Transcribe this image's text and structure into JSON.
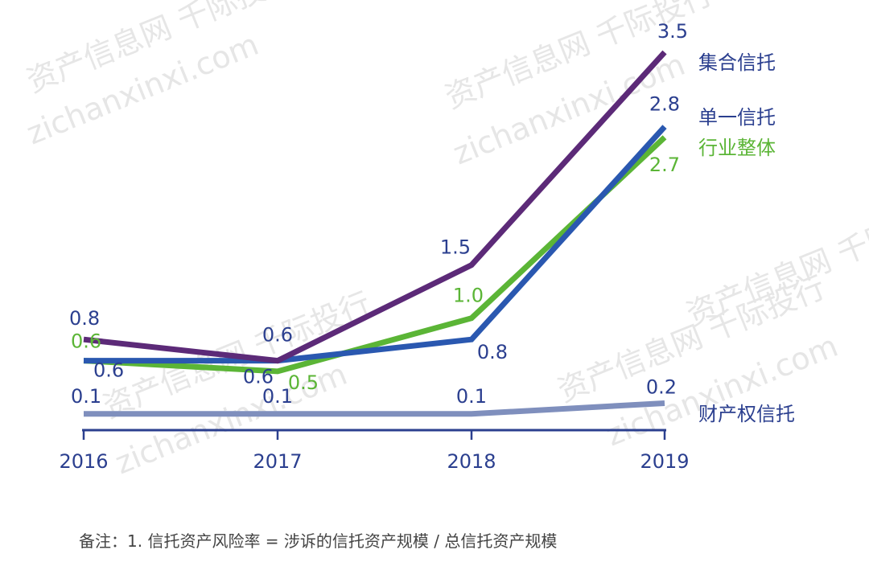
{
  "chart_data": {
    "type": "line",
    "x": [
      "2016",
      "2017",
      "2018",
      "2019"
    ],
    "ylim": [
      0,
      3.6
    ],
    "grid": false,
    "legend": "right, labels at line ends",
    "series": [
      {
        "name": "集合信托",
        "values": [
          0.8,
          0.6,
          1.5,
          3.5
        ],
        "labels": [
          "0.8",
          "0.6",
          "1.5",
          "3.5"
        ],
        "color": "#5c2a78",
        "label_color": "#2b3f8f"
      },
      {
        "name": "单一信托",
        "values": [
          0.6,
          0.6,
          0.8,
          2.8
        ],
        "labels": [
          "0.6",
          "0.6",
          "0.8",
          "2.8"
        ],
        "color": "#2a58b0",
        "label_color": "#2b3f8f"
      },
      {
        "name": "行业整体",
        "values": [
          0.6,
          0.5,
          1.0,
          2.7
        ],
        "labels": [
          "0.6",
          "0.5",
          "1.0",
          "2.7"
        ],
        "color": "#5bb536",
        "label_color": "#5bb536"
      },
      {
        "name": "财产权信托",
        "values": [
          0.1,
          0.1,
          0.1,
          0.2
        ],
        "labels": [
          "0.1",
          "0.1",
          "0.1",
          "0.2"
        ],
        "color": "#7f8fbd",
        "label_color": "#2b3f8f"
      }
    ]
  },
  "note": "备注：1. 信托资产风险率 = 涉诉的信托资产规模 / 总信托资产规模",
  "watermarks": [
    "资产信息网 千际投行",
    "zichanxinxi.com"
  ],
  "colors": {
    "axis": "#2b3f8f",
    "text": "#2b3f8f",
    "watermark": "#e6e6e6"
  }
}
